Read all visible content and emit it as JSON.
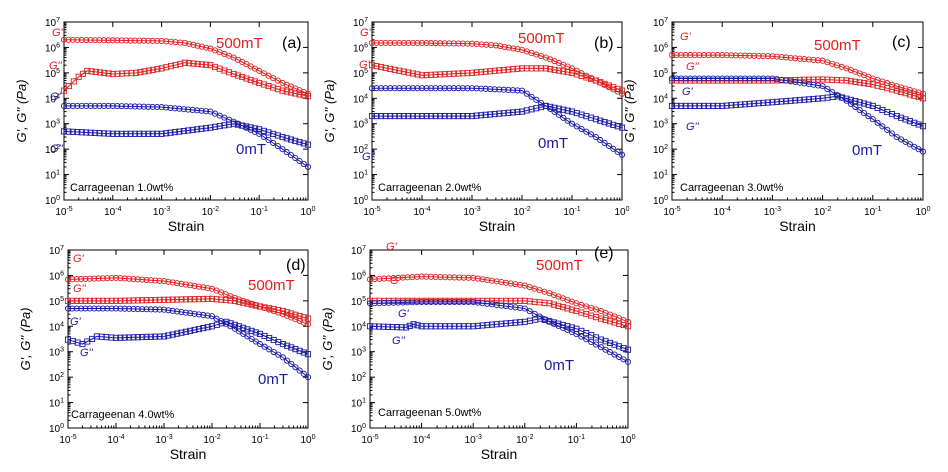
{
  "colors": {
    "red": "#e02020",
    "blue": "#1a1aa8"
  },
  "chart_data": [
    {
      "panel": "(a)",
      "type": "line",
      "xscale": "log",
      "yscale": "log",
      "xlabel": "Strain",
      "ylabel": "G', G'' (Pa)",
      "xlim": [
        1e-05,
        1
      ],
      "ylim": [
        1,
        10000000.0
      ],
      "sample_label": "Carrageenan 1.0wt%",
      "high_field_label": "500mT",
      "zero_field_label": "0mT",
      "series": [
        {
          "name": "G'",
          "field": "500mT",
          "marker": "circle",
          "x": [
            1e-05,
            0.0001,
            0.001,
            0.003,
            0.01,
            0.03,
            0.1,
            0.3,
            1
          ],
          "y": [
            2000000,
            1900000,
            1800000,
            1500000,
            900000,
            400000,
            120000,
            40000,
            15000
          ]
        },
        {
          "name": "G''",
          "field": "500mT",
          "marker": "square",
          "x": [
            1e-05,
            2e-05,
            3e-05,
            0.0001,
            0.0003,
            0.001,
            0.003,
            0.01,
            0.03,
            0.1,
            0.3,
            1
          ],
          "y": [
            20000,
            70000,
            120000,
            90000,
            100000,
            150000,
            250000,
            200000,
            90000,
            40000,
            20000,
            12000
          ]
        },
        {
          "name": "G'",
          "field": "0mT",
          "marker": "circle",
          "x": [
            1e-05,
            0.0001,
            0.001,
            0.01,
            0.03,
            0.1,
            0.3,
            1
          ],
          "y": [
            5000,
            5000,
            4500,
            3000,
            1200,
            400,
            100,
            20
          ]
        },
        {
          "name": "G''",
          "field": "0mT",
          "marker": "square",
          "x": [
            1e-05,
            0.0001,
            0.001,
            0.01,
            0.03,
            0.1,
            0.3,
            1
          ],
          "y": [
            500,
            400,
            400,
            700,
            1000,
            600,
            300,
            150
          ]
        }
      ],
      "labels": {
        "g1_high": "G'",
        "g2_high": "G''",
        "g1_zero": "G'",
        "g2_zero": "G''"
      }
    },
    {
      "panel": "(b)",
      "type": "line",
      "xscale": "log",
      "yscale": "log",
      "xlabel": "Strain",
      "ylabel": "G', G'' (Pa)",
      "xlim": [
        1e-05,
        1
      ],
      "ylim": [
        1,
        10000000.0
      ],
      "sample_label": "Carrageenan 2.0wt%",
      "high_field_label": "500mT",
      "zero_field_label": "0mT",
      "series": [
        {
          "name": "G'",
          "field": "500mT",
          "marker": "circle",
          "x": [
            1e-05,
            0.0001,
            0.001,
            0.003,
            0.01,
            0.03,
            0.1,
            0.3,
            1
          ],
          "y": [
            1500000,
            1500000,
            1400000,
            1200000,
            800000,
            400000,
            150000,
            50000,
            15000
          ]
        },
        {
          "name": "G''",
          "field": "500mT",
          "marker": "square",
          "x": [
            1e-05,
            0.0001,
            0.001,
            0.01,
            0.03,
            0.1,
            0.3,
            1
          ],
          "y": [
            200000,
            80000,
            100000,
            150000,
            150000,
            100000,
            50000,
            20000
          ]
        },
        {
          "name": "G'",
          "field": "0mT",
          "marker": "circle",
          "x": [
            1e-05,
            0.0001,
            0.001,
            0.01,
            0.03,
            0.1,
            0.3,
            1
          ],
          "y": [
            25000,
            25000,
            25000,
            20000,
            5000,
            1000,
            300,
            60
          ]
        },
        {
          "name": "G''",
          "field": "0mT",
          "marker": "square",
          "x": [
            1e-05,
            0.0001,
            0.001,
            0.01,
            0.03,
            0.1,
            0.3,
            1
          ],
          "y": [
            2000,
            2000,
            2000,
            3000,
            5000,
            3000,
            1500,
            700
          ]
        }
      ],
      "labels": {
        "g1_high": "G'",
        "g2_high": "G''",
        "g1_zero": "G'",
        "g2_zero": "G''"
      }
    },
    {
      "panel": "(c)",
      "type": "line",
      "xscale": "log",
      "yscale": "log",
      "xlabel": "Strain",
      "ylabel": "G', G'' (Pa)",
      "xlim": [
        1e-05,
        1
      ],
      "ylim": [
        1,
        10000000.0
      ],
      "sample_label": "Carrageenan 3.0wt%",
      "high_field_label": "500mT",
      "zero_field_label": "0mT",
      "series": [
        {
          "name": "G'",
          "field": "500mT",
          "marker": "circle",
          "x": [
            1e-05,
            0.0001,
            0.001,
            0.01,
            0.03,
            0.1,
            0.3,
            1
          ],
          "y": [
            500000,
            500000,
            450000,
            300000,
            150000,
            60000,
            30000,
            15000
          ]
        },
        {
          "name": "G''",
          "field": "500mT",
          "marker": "square",
          "x": [
            1e-05,
            0.0001,
            0.001,
            0.01,
            0.03,
            0.1,
            0.3,
            1
          ],
          "y": [
            50000,
            50000,
            50000,
            55000,
            50000,
            35000,
            20000,
            10000
          ]
        },
        {
          "name": "G'",
          "field": "0mT",
          "marker": "circle",
          "x": [
            1e-05,
            0.0001,
            0.001,
            0.01,
            0.03,
            0.1,
            0.3,
            1
          ],
          "y": [
            60000,
            60000,
            60000,
            30000,
            8000,
            1500,
            300,
            80
          ]
        },
        {
          "name": "G''",
          "field": "0mT",
          "marker": "square",
          "x": [
            1e-05,
            0.0001,
            0.001,
            0.01,
            0.02,
            0.1,
            0.3,
            1
          ],
          "y": [
            5000,
            5000,
            7000,
            10000,
            12000,
            5000,
            2000,
            800
          ]
        }
      ],
      "labels": {
        "g1_high": "G'",
        "g2_high": "G''",
        "g1_zero": "G'",
        "g2_zero": "G''"
      }
    },
    {
      "panel": "(d)",
      "type": "line",
      "xscale": "log",
      "yscale": "log",
      "xlabel": "Strain",
      "ylabel": "G', G'' (Pa)",
      "xlim": [
        1e-05,
        1
      ],
      "ylim": [
        1,
        10000000.0
      ],
      "sample_label": "Carrageenan 4.0wt%",
      "high_field_label": "500mT",
      "zero_field_label": "0mT",
      "series": [
        {
          "name": "G'",
          "field": "500mT",
          "marker": "circle",
          "x": [
            1e-05,
            0.0001,
            0.001,
            0.01,
            0.03,
            0.1,
            0.3,
            1
          ],
          "y": [
            700000,
            800000,
            600000,
            300000,
            130000,
            60000,
            30000,
            12000
          ]
        },
        {
          "name": "G''",
          "field": "500mT",
          "marker": "square",
          "x": [
            1e-05,
            0.0001,
            0.001,
            0.01,
            0.03,
            0.1,
            0.3,
            1
          ],
          "y": [
            100000,
            100000,
            110000,
            120000,
            100000,
            60000,
            40000,
            20000
          ]
        },
        {
          "name": "G'",
          "field": "0mT",
          "marker": "circle",
          "x": [
            1e-05,
            0.0001,
            0.001,
            0.01,
            0.03,
            0.1,
            0.3,
            1
          ],
          "y": [
            50000,
            50000,
            45000,
            25000,
            8000,
            2000,
            600,
            100
          ]
        },
        {
          "name": "G''",
          "field": "0mT",
          "marker": "square",
          "x": [
            1e-05,
            2e-05,
            4e-05,
            0.0001,
            0.001,
            0.01,
            0.02,
            0.1,
            0.3,
            1
          ],
          "y": [
            3000,
            2000,
            4000,
            3500,
            4000,
            10000,
            15000,
            5000,
            2000,
            800
          ]
        }
      ],
      "labels": {
        "g1_high": "G'",
        "g2_high": "G''",
        "g1_zero": "G'",
        "g2_zero": "G''"
      }
    },
    {
      "panel": "(e)",
      "type": "line",
      "xscale": "log",
      "yscale": "log",
      "xlabel": "Strain",
      "ylabel": "G', G'' (Pa)",
      "xlim": [
        1e-05,
        1
      ],
      "ylim": [
        1,
        10000000.0
      ],
      "sample_label": "Carrageenan 5.0wt%",
      "high_field_label": "500mT",
      "zero_field_label": "0mT",
      "series": [
        {
          "name": "G'",
          "field": "500mT",
          "marker": "circle",
          "x": [
            1e-05,
            0.0001,
            0.001,
            0.01,
            0.03,
            0.1,
            0.3,
            1
          ],
          "y": [
            700000,
            900000,
            800000,
            400000,
            200000,
            80000,
            40000,
            15000
          ]
        },
        {
          "name": "G''",
          "field": "500mT",
          "marker": "square",
          "x": [
            1e-05,
            0.0001,
            0.001,
            0.01,
            0.03,
            0.1,
            0.3,
            1
          ],
          "y": [
            100000,
            100000,
            100000,
            100000,
            80000,
            40000,
            20000,
            10000
          ]
        },
        {
          "name": "G'",
          "field": "0mT",
          "marker": "circle",
          "x": [
            1e-05,
            0.0001,
            0.001,
            0.01,
            0.03,
            0.1,
            0.3,
            1
          ],
          "y": [
            80000,
            90000,
            90000,
            50000,
            15000,
            5000,
            1500,
            400
          ]
        },
        {
          "name": "G''",
          "field": "0mT",
          "marker": "square",
          "x": [
            1e-05,
            5e-05,
            7e-05,
            0.0001,
            0.001,
            0.01,
            0.02,
            0.1,
            0.3,
            1
          ],
          "y": [
            10000,
            9000,
            12000,
            10000,
            10000,
            15000,
            20000,
            8000,
            3000,
            1200
          ]
        }
      ],
      "labels": {
        "g1_high": "G'",
        "g2_high": "G''",
        "g1_zero": "G'",
        "g2_zero": "G''"
      }
    }
  ]
}
